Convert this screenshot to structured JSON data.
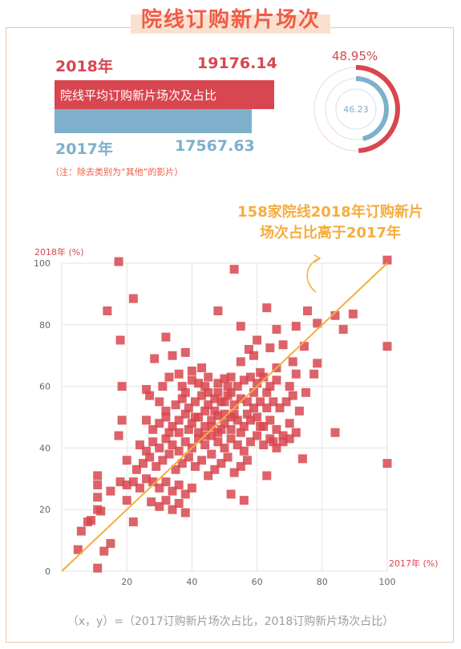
{
  "header": {
    "title": "院线订购新片场次"
  },
  "summary": {
    "year_2018_label": "2018年",
    "year_2018_value": "19176.14",
    "bar_label": "院线平均订购新片场次及占比",
    "year_2017_label": "2017年",
    "year_2017_value": "17567.63",
    "note": "（注：除去类别为“其他”的影片）"
  },
  "donut": {
    "outer_label": "48.95%",
    "outer_value": 48.95,
    "inner_label": "46.23",
    "inner_value": 46.23
  },
  "callout": {
    "line1": "158家院线2018年订购新片",
    "line2": "场次占比高于2017年"
  },
  "footer": {
    "formula": "（x，y）=（2017订购新片场次占比，2018订购新片场次占比）"
  },
  "colors": {
    "accent_red": "#d8464f",
    "accent_blue": "#7eb0cb",
    "accent_orange": "#f5ad3d",
    "point_color": "#d8464f"
  },
  "chart_data": {
    "type": "scatter",
    "xlabel": "2017年 (%)",
    "ylabel": "2018年 (%)",
    "xlim": [
      0,
      100
    ],
    "ylim": [
      0,
      100
    ],
    "x_ticks": [
      20,
      40,
      60,
      80,
      100
    ],
    "y_ticks": [
      0,
      20,
      40,
      60,
      80,
      100
    ],
    "grid": true,
    "reference_line": [
      [
        0,
        0
      ],
      [
        100,
        100
      ]
    ],
    "points": [
      [
        17.5,
        100.5
      ],
      [
        53,
        98
      ],
      [
        14,
        84.5
      ],
      [
        22,
        88.5
      ],
      [
        48,
        84.5
      ],
      [
        55,
        79.5
      ],
      [
        75.5,
        84.5
      ],
      [
        84,
        83
      ],
      [
        89.5,
        83.5
      ],
      [
        78.5,
        80.5
      ],
      [
        86.5,
        78.5
      ],
      [
        72,
        79.5
      ],
      [
        66,
        78.5
      ],
      [
        63,
        85.5
      ],
      [
        60,
        75
      ],
      [
        57.5,
        72
      ],
      [
        32,
        76
      ],
      [
        18,
        75
      ],
      [
        34,
        70
      ],
      [
        38,
        71
      ],
      [
        28.5,
        69
      ],
      [
        64,
        72.5
      ],
      [
        68,
        73.5
      ],
      [
        74.5,
        73
      ],
      [
        78.5,
        67.5
      ],
      [
        77.5,
        64
      ],
      [
        71,
        68
      ],
      [
        66,
        66
      ],
      [
        61,
        64.5
      ],
      [
        59,
        70
      ],
      [
        55,
        68
      ],
      [
        18.5,
        60
      ],
      [
        26,
        59
      ],
      [
        27,
        57
      ],
      [
        31,
        60
      ],
      [
        33,
        63
      ],
      [
        36,
        64
      ],
      [
        40,
        62
      ],
      [
        42,
        61
      ],
      [
        44,
        60
      ],
      [
        45,
        63
      ],
      [
        48,
        61
      ],
      [
        50,
        62.5
      ],
      [
        52,
        63
      ],
      [
        54,
        60
      ],
      [
        56,
        62
      ],
      [
        58,
        63
      ],
      [
        60,
        61
      ],
      [
        62,
        63
      ],
      [
        64,
        60
      ],
      [
        66,
        62
      ],
      [
        70,
        60
      ],
      [
        72,
        64
      ],
      [
        30,
        55
      ],
      [
        32,
        52
      ],
      [
        35,
        54
      ],
      [
        37,
        56
      ],
      [
        39,
        53
      ],
      [
        41,
        55
      ],
      [
        43,
        57
      ],
      [
        45,
        54
      ],
      [
        47,
        56
      ],
      [
        49,
        55
      ],
      [
        51,
        57
      ],
      [
        53,
        54
      ],
      [
        55,
        56
      ],
      [
        57,
        55
      ],
      [
        59,
        53
      ],
      [
        61,
        55
      ],
      [
        63,
        53
      ],
      [
        65,
        55
      ],
      [
        67,
        53
      ],
      [
        69,
        55
      ],
      [
        71,
        57
      ],
      [
        73,
        52
      ],
      [
        75,
        58
      ],
      [
        18.5,
        49
      ],
      [
        26,
        49
      ],
      [
        28,
        46
      ],
      [
        30,
        48
      ],
      [
        32,
        50
      ],
      [
        34,
        47
      ],
      [
        36,
        49
      ],
      [
        38,
        51
      ],
      [
        40,
        48
      ],
      [
        42,
        50
      ],
      [
        44,
        47
      ],
      [
        46,
        49
      ],
      [
        48,
        50.5
      ],
      [
        50,
        48
      ],
      [
        52,
        46
      ],
      [
        54,
        49
      ],
      [
        56,
        47
      ],
      [
        58,
        49
      ],
      [
        60,
        50
      ],
      [
        62,
        47
      ],
      [
        64,
        49
      ],
      [
        66,
        46
      ],
      [
        68,
        44
      ],
      [
        70,
        48
      ],
      [
        72,
        45
      ],
      [
        17.5,
        44
      ],
      [
        24,
        41
      ],
      [
        26,
        39
      ],
      [
        28,
        42
      ],
      [
        30,
        40
      ],
      [
        32,
        43
      ],
      [
        34,
        41
      ],
      [
        36,
        39
      ],
      [
        38,
        42
      ],
      [
        40,
        40
      ],
      [
        42,
        43
      ],
      [
        44,
        41
      ],
      [
        46,
        44
      ],
      [
        48,
        42
      ],
      [
        50,
        40
      ],
      [
        52,
        43
      ],
      [
        54,
        41
      ],
      [
        56,
        39
      ],
      [
        58,
        42
      ],
      [
        60,
        44
      ],
      [
        62,
        41
      ],
      [
        64,
        43
      ],
      [
        66,
        40
      ],
      [
        68,
        42
      ],
      [
        70,
        43
      ],
      [
        84,
        45
      ],
      [
        20,
        36
      ],
      [
        23,
        33
      ],
      [
        25,
        35
      ],
      [
        27,
        37
      ],
      [
        29,
        34
      ],
      [
        31,
        36
      ],
      [
        33,
        38
      ],
      [
        35,
        33
      ],
      [
        37,
        35
      ],
      [
        39,
        37
      ],
      [
        41,
        34
      ],
      [
        43,
        36
      ],
      [
        45,
        31
      ],
      [
        47,
        33
      ],
      [
        49,
        35
      ],
      [
        51,
        37
      ],
      [
        53,
        32
      ],
      [
        55,
        34
      ],
      [
        57,
        36
      ],
      [
        63,
        31
      ],
      [
        74,
        36.5
      ],
      [
        100,
        35
      ],
      [
        11,
        31
      ],
      [
        11,
        28
      ],
      [
        15,
        26
      ],
      [
        18,
        29
      ],
      [
        20,
        28
      ],
      [
        22,
        29
      ],
      [
        24,
        27
      ],
      [
        26,
        30
      ],
      [
        28,
        29
      ],
      [
        30,
        27
      ],
      [
        32,
        29
      ],
      [
        34,
        26
      ],
      [
        36,
        28
      ],
      [
        38,
        25
      ],
      [
        40,
        27
      ],
      [
        52,
        25
      ],
      [
        56,
        23
      ],
      [
        11,
        24
      ],
      [
        11,
        20
      ],
      [
        12,
        19.5
      ],
      [
        20,
        23
      ],
      [
        22,
        16
      ],
      [
        27.5,
        22.5
      ],
      [
        30,
        21
      ],
      [
        32,
        23
      ],
      [
        34,
        20
      ],
      [
        36,
        22
      ],
      [
        38,
        19
      ],
      [
        6,
        13
      ],
      [
        8,
        16
      ],
      [
        9,
        16.5
      ],
      [
        15,
        9
      ],
      [
        5,
        7
      ],
      [
        13,
        6.5
      ],
      [
        11,
        1
      ],
      [
        100,
        101
      ],
      [
        100,
        73
      ],
      [
        43,
        66
      ],
      [
        45,
        58
      ],
      [
        47,
        52
      ],
      [
        49,
        46
      ],
      [
        51,
        60
      ],
      [
        53,
        51
      ],
      [
        46,
        38
      ],
      [
        42,
        45
      ],
      [
        44,
        52
      ],
      [
        48,
        58
      ],
      [
        50,
        51
      ],
      [
        52,
        58
      ],
      [
        36,
        45
      ],
      [
        38,
        58
      ],
      [
        40,
        65
      ],
      [
        41,
        50
      ],
      [
        39,
        46
      ],
      [
        37,
        60
      ],
      [
        33,
        45
      ],
      [
        55,
        45
      ],
      [
        57,
        51
      ],
      [
        59,
        58
      ],
      [
        61,
        47
      ],
      [
        63,
        58
      ],
      [
        65,
        42
      ],
      [
        44,
        44
      ],
      [
        46,
        47
      ],
      [
        48,
        45
      ],
      [
        50,
        55
      ],
      [
        52,
        50
      ]
    ]
  }
}
